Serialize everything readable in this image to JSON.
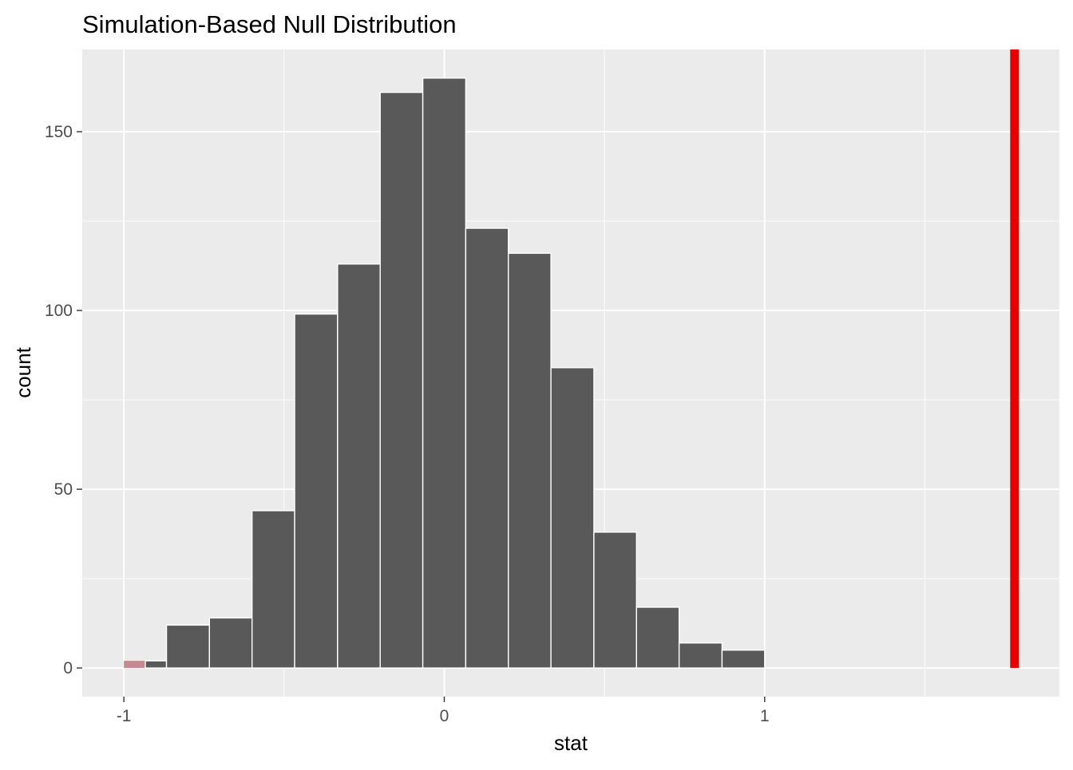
{
  "chart_data": {
    "type": "bar",
    "title": "Simulation-Based Null Distribution",
    "xlabel": "stat",
    "ylabel": "count",
    "xlim": [
      -1.13,
      1.92
    ],
    "ylim": [
      -8,
      173
    ],
    "x_ticks": [
      {
        "value": -1,
        "label": "-1"
      },
      {
        "value": 0,
        "label": "0"
      },
      {
        "value": 1,
        "label": "1"
      }
    ],
    "x_minor_ticks": [
      -0.5,
      0.5,
      1.5
    ],
    "y_ticks": [
      {
        "value": 0,
        "label": "0"
      },
      {
        "value": 50,
        "label": "50"
      },
      {
        "value": 100,
        "label": "100"
      },
      {
        "value": 150,
        "label": "150"
      }
    ],
    "y_minor_ticks": [
      25,
      75,
      125
    ],
    "bins": [
      {
        "x_start": -1.0,
        "x_end": -0.933,
        "count": 2,
        "shaded": true
      },
      {
        "x_start": -0.933,
        "x_end": -0.867,
        "count": 2,
        "shaded": false
      },
      {
        "x_start": -0.867,
        "x_end": -0.733,
        "count": 12,
        "shaded": false
      },
      {
        "x_start": -0.733,
        "x_end": -0.6,
        "count": 14,
        "shaded": false
      },
      {
        "x_start": -0.6,
        "x_end": -0.467,
        "count": 44,
        "shaded": false
      },
      {
        "x_start": -0.467,
        "x_end": -0.333,
        "count": 99,
        "shaded": false
      },
      {
        "x_start": -0.333,
        "x_end": -0.2,
        "count": 113,
        "shaded": false
      },
      {
        "x_start": -0.2,
        "x_end": -0.067,
        "count": 161,
        "shaded": false
      },
      {
        "x_start": -0.067,
        "x_end": 0.067,
        "count": 165,
        "shaded": false
      },
      {
        "x_start": 0.067,
        "x_end": 0.2,
        "count": 123,
        "shaded": false
      },
      {
        "x_start": 0.2,
        "x_end": 0.333,
        "count": 116,
        "shaded": false
      },
      {
        "x_start": 0.333,
        "x_end": 0.467,
        "count": 84,
        "shaded": false
      },
      {
        "x_start": 0.467,
        "x_end": 0.6,
        "count": 38,
        "shaded": false
      },
      {
        "x_start": 0.6,
        "x_end": 0.733,
        "count": 17,
        "shaded": false
      },
      {
        "x_start": 0.733,
        "x_end": 0.867,
        "count": 7,
        "shaded": false
      },
      {
        "x_start": 0.867,
        "x_end": 1.0,
        "count": 5,
        "shaded": false
      }
    ],
    "observed_stat": 1.78,
    "grid": true,
    "colors": {
      "panel_background": "#ebebeb",
      "grid_line": "#ffffff",
      "bar_fill": "#595959",
      "bar_border": "#ffffff",
      "shaded_fill": "#c48a91",
      "observed_line": "#e80000"
    }
  }
}
